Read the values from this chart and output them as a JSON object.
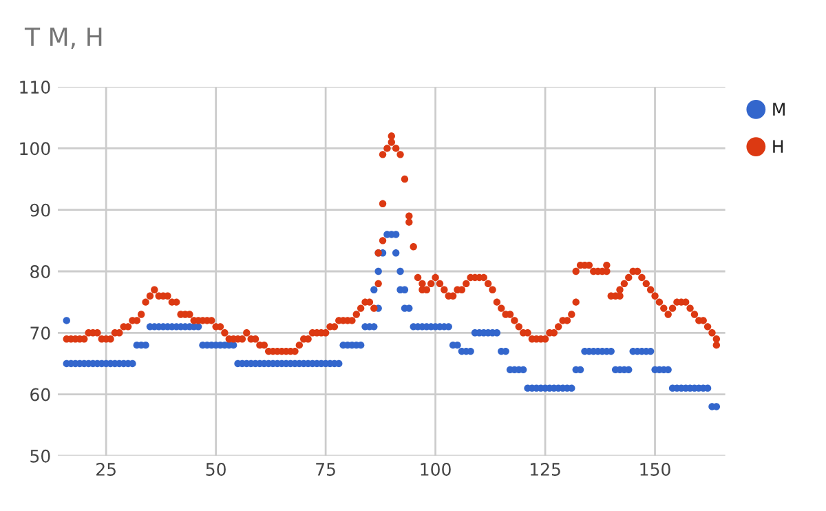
{
  "chart_data": {
    "type": "scatter",
    "title": "T M, H",
    "xlim": [
      14,
      166
    ],
    "xticks": [
      25,
      50,
      75,
      100,
      125,
      150
    ],
    "ylim": [
      50,
      110
    ],
    "yticks": [
      50,
      60,
      70,
      80,
      90,
      100,
      110
    ],
    "grid": true,
    "legend": "top right",
    "marker": "circle",
    "series": [
      {
        "name": "M",
        "color": "#3366cc",
        "x": [
          16,
          16,
          17,
          18,
          19,
          20,
          21,
          22,
          23,
          24,
          25,
          26,
          27,
          28,
          29,
          30,
          31,
          32,
          33,
          34,
          35,
          36,
          37,
          38,
          39,
          40,
          41,
          42,
          43,
          44,
          45,
          46,
          47,
          48,
          49,
          50,
          51,
          52,
          53,
          54,
          55,
          56,
          57,
          58,
          59,
          60,
          61,
          62,
          63,
          64,
          65,
          66,
          67,
          68,
          69,
          70,
          71,
          72,
          73,
          74,
          75,
          76,
          77,
          78,
          79,
          80,
          81,
          82,
          83,
          84,
          85,
          86,
          86,
          87,
          87,
          87,
          88,
          89,
          90,
          91,
          91,
          92,
          92,
          93,
          93,
          94,
          95,
          96,
          97,
          98,
          99,
          100,
          101,
          102,
          103,
          104,
          105,
          106,
          107,
          108,
          109,
          110,
          111,
          112,
          113,
          114,
          115,
          116,
          117,
          118,
          119,
          120,
          121,
          122,
          123,
          124,
          125,
          126,
          127,
          128,
          129,
          130,
          131,
          132,
          133,
          134,
          135,
          136,
          137,
          138,
          139,
          140,
          141,
          142,
          143,
          144,
          145,
          146,
          147,
          148,
          149,
          150,
          151,
          152,
          153,
          154,
          155,
          156,
          157,
          158,
          159,
          160,
          161,
          162,
          163,
          164
        ],
        "values": [
          72,
          65,
          65,
          65,
          65,
          65,
          65,
          65,
          65,
          65,
          65,
          65,
          65,
          65,
          65,
          65,
          65,
          68,
          68,
          68,
          71,
          71,
          71,
          71,
          71,
          71,
          71,
          71,
          71,
          71,
          71,
          71,
          68,
          68,
          68,
          68,
          68,
          68,
          68,
          68,
          65,
          65,
          65,
          65,
          65,
          65,
          65,
          65,
          65,
          65,
          65,
          65,
          65,
          65,
          65,
          65,
          65,
          65,
          65,
          65,
          65,
          65,
          65,
          65,
          68,
          68,
          68,
          68,
          68,
          71,
          71,
          71,
          77,
          74,
          80,
          83,
          83,
          86,
          86,
          86,
          83,
          80,
          77,
          77,
          74,
          74,
          71,
          71,
          71,
          71,
          71,
          71,
          71,
          71,
          71,
          68,
          68,
          67,
          67,
          67,
          70,
          70,
          70,
          70,
          70,
          70,
          67,
          67,
          64,
          64,
          64,
          64,
          61,
          61,
          61,
          61,
          61,
          61,
          61,
          61,
          61,
          61,
          61,
          64,
          64,
          67,
          67,
          67,
          67,
          67,
          67,
          67,
          64,
          64,
          64,
          64,
          67,
          67,
          67,
          67,
          67,
          64,
          64,
          64,
          64,
          61,
          61,
          61,
          61,
          61,
          61,
          61,
          61,
          61,
          58,
          58
        ]
      },
      {
        "name": "H",
        "color": "#dc3912",
        "x": [
          16,
          17,
          18,
          19,
          20,
          21,
          22,
          23,
          24,
          25,
          26,
          27,
          28,
          29,
          30,
          31,
          32,
          33,
          34,
          35,
          36,
          37,
          38,
          39,
          40,
          41,
          42,
          43,
          44,
          45,
          46,
          47,
          48,
          49,
          50,
          51,
          52,
          53,
          54,
          55,
          56,
          57,
          58,
          59,
          60,
          61,
          62,
          63,
          64,
          65,
          66,
          67,
          68,
          69,
          70,
          71,
          72,
          73,
          74,
          75,
          76,
          77,
          78,
          79,
          80,
          81,
          82,
          83,
          84,
          85,
          86,
          87,
          87,
          88,
          88,
          88,
          89,
          90,
          90,
          91,
          92,
          93,
          94,
          94,
          95,
          96,
          97,
          97,
          98,
          99,
          100,
          101,
          102,
          103,
          104,
          105,
          106,
          107,
          108,
          109,
          110,
          111,
          112,
          113,
          114,
          115,
          116,
          117,
          118,
          119,
          120,
          121,
          122,
          123,
          124,
          125,
          126,
          127,
          128,
          129,
          130,
          131,
          132,
          132,
          133,
          134,
          135,
          136,
          137,
          138,
          139,
          139,
          140,
          141,
          142,
          142,
          143,
          144,
          145,
          146,
          147,
          148,
          149,
          150,
          151,
          152,
          153,
          154,
          155,
          156,
          157,
          158,
          159,
          160,
          161,
          162,
          163,
          164,
          164
        ],
        "values": [
          69,
          69,
          69,
          69,
          69,
          70,
          70,
          70,
          69,
          69,
          69,
          70,
          70,
          71,
          71,
          72,
          72,
          73,
          75,
          76,
          77,
          76,
          76,
          76,
          75,
          75,
          73,
          73,
          73,
          72,
          72,
          72,
          72,
          72,
          71,
          71,
          70,
          69,
          69,
          69,
          69,
          70,
          69,
          69,
          68,
          68,
          67,
          67,
          67,
          67,
          67,
          67,
          67,
          68,
          69,
          69,
          70,
          70,
          70,
          70,
          71,
          71,
          72,
          72,
          72,
          72,
          73,
          74,
          75,
          75,
          74,
          78,
          83,
          85,
          91,
          99,
          100,
          101,
          102,
          100,
          99,
          95,
          89,
          88,
          84,
          79,
          78,
          77,
          77,
          78,
          79,
          78,
          77,
          76,
          76,
          77,
          77,
          78,
          79,
          79,
          79,
          79,
          78,
          77,
          75,
          74,
          73,
          73,
          72,
          71,
          70,
          70,
          69,
          69,
          69,
          69,
          70,
          70,
          71,
          72,
          72,
          73,
          75,
          80,
          81,
          81,
          81,
          80,
          80,
          80,
          80,
          81,
          76,
          76,
          76,
          77,
          78,
          79,
          80,
          80,
          79,
          78,
          77,
          76,
          75,
          74,
          73,
          74,
          75,
          75,
          75,
          74,
          73,
          72,
          72,
          71,
          70,
          69,
          68
        ]
      }
    ]
  }
}
